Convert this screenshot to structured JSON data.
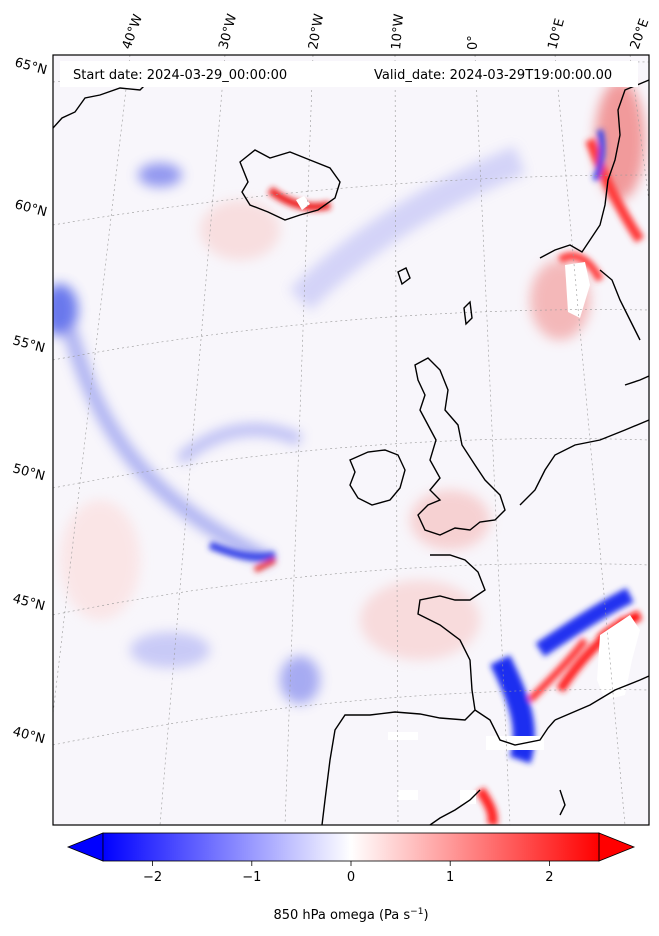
{
  "header": {
    "start_date": "Start date: 2024-03-29_00:00:00",
    "valid_date": "Valid_date: 2024-03-29T19:00:00.00"
  },
  "longitude_labels": [
    "40°W",
    "30°W",
    "20°W",
    "10°W",
    "0°",
    "10°E",
    "20°E"
  ],
  "latitude_labels": [
    "65°N",
    "60°N",
    "55°N",
    "50°N",
    "45°N",
    "40°N"
  ],
  "colorbar": {
    "ticks": [
      "−2",
      "−1",
      "0",
      "1",
      "2"
    ],
    "tick_values": [
      -2,
      -1,
      0,
      1,
      2
    ],
    "range": [
      -2.5,
      2.5
    ],
    "label": "850 hPa omega (Pa s",
    "label_sup": "−1",
    "label_end": ")",
    "colormap": "bwr",
    "colors": {
      "low": "#0000ff",
      "mid": "#ffffff",
      "high": "#ff0000"
    }
  }
}
